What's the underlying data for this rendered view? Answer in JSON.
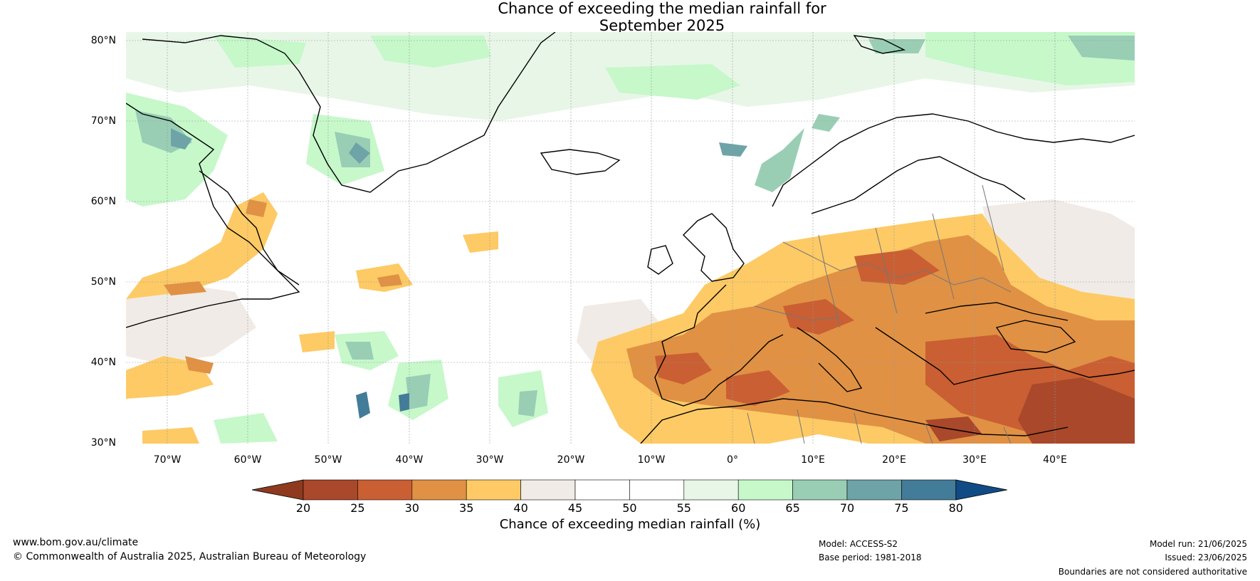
{
  "title": {
    "line1": "Chance of exceeding the median rainfall for",
    "line2": "September 2025"
  },
  "lat_ticks": [
    "80°N",
    "70°N",
    "60°N",
    "50°N",
    "40°N",
    "30°N"
  ],
  "lon_ticks": [
    "70°W",
    "60°W",
    "50°W",
    "40°W",
    "30°W",
    "20°W",
    "10°W",
    "0°",
    "10°E",
    "20°E",
    "30°E",
    "40°E"
  ],
  "colorbar": {
    "ticks": [
      "20",
      "25",
      "30",
      "35",
      "40",
      "45",
      "50",
      "55",
      "60",
      "65",
      "70",
      "75",
      "80"
    ],
    "colors": [
      "#a9482a",
      "#c95f33",
      "#e09144",
      "#fdca65",
      "#f0ebe6",
      "#ffffff",
      "#ffffff",
      "#e8f6e8",
      "#c6f8ca",
      "#99ceb5",
      "#6ea4a8",
      "#437c98"
    ],
    "low_color": "#8f3a1f",
    "high_color": "#114b85",
    "label": "Chance of exceeding median rainfall (%)"
  },
  "footer": {
    "website": "www.bom.gov.au/climate",
    "copyright": "© Commonwealth of Australia 2025, Australian Bureau of Meteorology",
    "model": "Model: ACCESS-S2",
    "base_period": "Base period: 1981-2018",
    "model_run": "Model run: 21/06/2025",
    "issued": "Issued: 23/06/2025",
    "disclaimer": "Boundaries are not considered authoritative"
  }
}
